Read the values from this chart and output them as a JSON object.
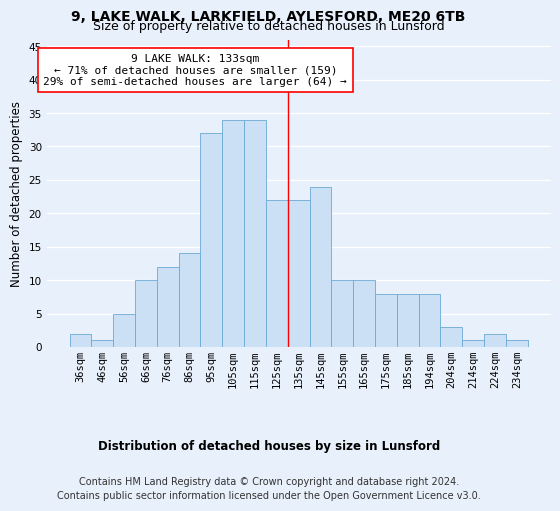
{
  "title1": "9, LAKE WALK, LARKFIELD, AYLESFORD, ME20 6TB",
  "title2": "Size of property relative to detached houses in Lunsford",
  "xlabel": "Distribution of detached houses by size in Lunsford",
  "ylabel": "Number of detached properties",
  "footnote1": "Contains HM Land Registry data © Crown copyright and database right 2024.",
  "footnote2": "Contains public sector information licensed under the Open Government Licence v3.0.",
  "annotation_line1": "9 LAKE WALK: 133sqm",
  "annotation_line2": "← 71% of detached houses are smaller (159)",
  "annotation_line3": "29% of semi-detached houses are larger (64) →",
  "bar_values": [
    2,
    1,
    5,
    10,
    12,
    14,
    32,
    34,
    34,
    22,
    22,
    24,
    10,
    10,
    8,
    8,
    8,
    3,
    1,
    2,
    1
  ],
  "bar_labels": [
    "36sqm",
    "46sqm",
    "56sqm",
    "66sqm",
    "76sqm",
    "86sqm",
    "95sqm",
    "105sqm",
    "115sqm",
    "125sqm",
    "135sqm",
    "145sqm",
    "155sqm",
    "165sqm",
    "175sqm",
    "185sqm",
    "194sqm",
    "204sqm",
    "214sqm",
    "224sqm",
    "234sqm"
  ],
  "bar_color": "#cce0f5",
  "bar_edge_color": "#6aaad4",
  "vline_color": "red",
  "annotation_box_color": "#ffffff",
  "annotation_box_edge": "red",
  "ylim": [
    0,
    46
  ],
  "yticks": [
    0,
    5,
    10,
    15,
    20,
    25,
    30,
    35,
    40,
    45
  ],
  "bg_color": "#e8f0fb",
  "fig_bg_color": "#e8f0fb",
  "grid_color": "#ffffff",
  "title1_fontsize": 10,
  "title2_fontsize": 9,
  "axis_label_fontsize": 8.5,
  "tick_fontsize": 7.5,
  "annotation_fontsize": 8,
  "footnote_fontsize": 7
}
